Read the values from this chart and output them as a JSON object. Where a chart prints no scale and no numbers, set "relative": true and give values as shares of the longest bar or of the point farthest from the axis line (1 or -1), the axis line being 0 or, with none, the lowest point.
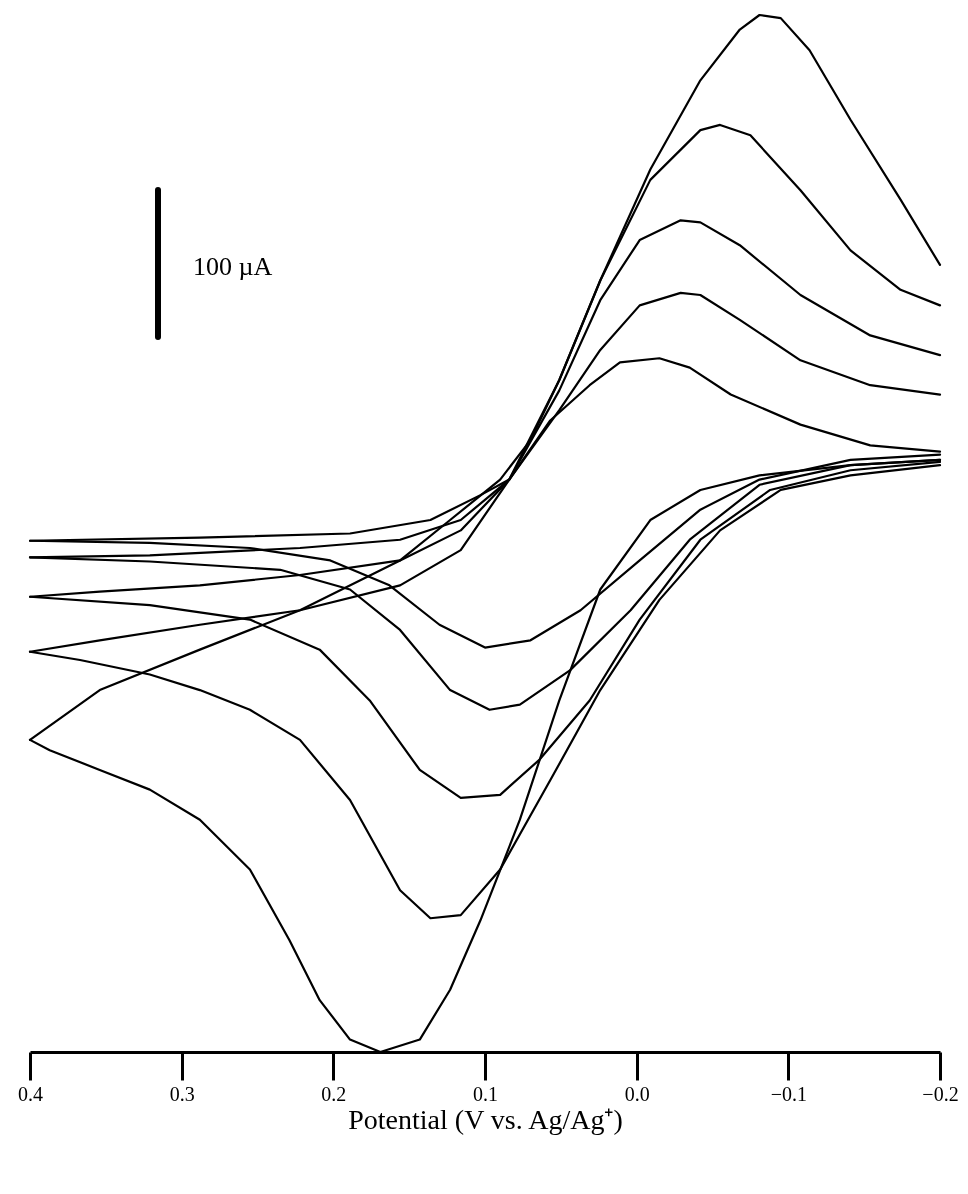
{
  "chart_data": {
    "type": "line",
    "relative": true,
    "xlabel": "Potential (V vs. Ag/Ag⁺)",
    "xlim": [
      0.4,
      -0.2
    ],
    "xticks": [
      0.4,
      0.3,
      0.2,
      0.1,
      {
        "value": 0,
        "label": "0.0"
      },
      -0.1,
      -0.2
    ],
    "grid": false,
    "line_style": "solid",
    "marker": "none",
    "annotations": [
      "100 µA"
    ],
    "series": [
      {
        "color": "#000000",
        "x": [
          0.4,
          0.288,
          0.189,
          0.136,
          0.103,
          0.084,
          0.057,
          0.031,
          0.011,
          -0.015,
          -0.035,
          -0.062,
          -0.108,
          -0.154,
          -0.2
        ],
        "values": [
          0.493,
          0.496,
          0.5,
          0.513,
          0.537,
          0.552,
          0.609,
          0.643,
          0.665,
          0.669,
          0.66,
          0.634,
          0.605,
          0.585,
          0.579
        ]
      },
      {
        "color": "#000000",
        "x": [
          0.4,
          0.321,
          0.255,
          0.202,
          0.163,
          0.13,
          0.1,
          0.07,
          0.037,
          -0.002,
          -0.042,
          -0.081,
          -0.141,
          -0.2
        ],
        "values": [
          0.493,
          0.491,
          0.486,
          0.474,
          0.45,
          0.412,
          0.39,
          0.397,
          0.426,
          0.474,
          0.523,
          0.552,
          0.571,
          0.576
        ]
      },
      {
        "color": "#000000",
        "x": [
          0.4,
          0.321,
          0.222,
          0.156,
          0.116,
          0.084,
          0.051,
          0.024,
          -0.002,
          -0.029,
          -0.042,
          -0.068,
          -0.108,
          -0.154,
          -0.2
        ],
        "values": [
          0.477,
          0.479,
          0.486,
          0.494,
          0.513,
          0.552,
          0.619,
          0.677,
          0.72,
          0.732,
          0.73,
          0.706,
          0.667,
          0.643,
          0.634
        ]
      },
      {
        "color": "#000000",
        "x": [
          0.4,
          0.321,
          0.235,
          0.189,
          0.156,
          0.123,
          0.097,
          0.077,
          0.044,
          0.004,
          -0.035,
          -0.081,
          -0.141,
          -0.2
        ],
        "values": [
          0.477,
          0.473,
          0.465,
          0.446,
          0.407,
          0.349,
          0.33,
          0.335,
          0.368,
          0.426,
          0.494,
          0.547,
          0.566,
          0.571
        ]
      },
      {
        "color": "#000000",
        "x": [
          0.4,
          0.354,
          0.288,
          0.222,
          0.156,
          0.116,
          0.084,
          0.051,
          0.024,
          -0.002,
          -0.029,
          -0.042,
          -0.068,
          -0.108,
          -0.154,
          -0.2
        ],
        "values": [
          0.439,
          0.444,
          0.45,
          0.46,
          0.474,
          0.503,
          0.552,
          0.638,
          0.725,
          0.783,
          0.802,
          0.8,
          0.778,
          0.73,
          0.691,
          0.672
        ]
      },
      {
        "color": "#000000",
        "x": [
          0.4,
          0.321,
          0.255,
          0.209,
          0.176,
          0.143,
          0.116,
          0.09,
          0.064,
          0.031,
          -0.002,
          -0.042,
          -0.088,
          -0.141,
          -0.2
        ],
        "values": [
          0.439,
          0.431,
          0.417,
          0.388,
          0.339,
          0.272,
          0.245,
          0.248,
          0.282,
          0.339,
          0.417,
          0.494,
          0.542,
          0.561,
          0.569
        ]
      },
      {
        "color": "#000000",
        "x": [
          0.4,
          0.354,
          0.288,
          0.222,
          0.156,
          0.116,
          0.084,
          0.051,
          0.024,
          -0.009,
          -0.042,
          -0.055,
          -0.075,
          -0.108,
          -0.141,
          -0.174,
          -0.2
        ],
        "values": [
          0.386,
          0.397,
          0.412,
          0.426,
          0.45,
          0.484,
          0.552,
          0.648,
          0.744,
          0.841,
          0.889,
          0.894,
          0.884,
          0.831,
          0.773,
          0.735,
          0.72
        ]
      },
      {
        "color": "#000000",
        "x": [
          0.4,
          0.367,
          0.321,
          0.288,
          0.255,
          0.222,
          0.189,
          0.156,
          0.136,
          0.116,
          0.09,
          0.057,
          0.024,
          -0.015,
          -0.055,
          -0.095,
          -0.141,
          -0.2
        ],
        "values": [
          0.386,
          0.378,
          0.364,
          0.349,
          0.33,
          0.301,
          0.243,
          0.156,
          0.129,
          0.132,
          0.176,
          0.262,
          0.349,
          0.436,
          0.503,
          0.542,
          0.556,
          0.566
        ]
      },
      {
        "color": "#000000",
        "x": [
          0.4,
          0.354,
          0.288,
          0.222,
          0.156,
          0.123,
          0.09,
          0.07,
          0.051,
          0.024,
          -0.009,
          -0.042,
          -0.068,
          -0.081,
          -0.095,
          -0.114,
          -0.141,
          -0.174,
          -0.2
        ],
        "values": [
          0.301,
          0.349,
          0.388,
          0.426,
          0.474,
          0.513,
          0.552,
          0.59,
          0.648,
          0.744,
          0.851,
          0.937,
          0.986,
          1.0,
          0.997,
          0.966,
          0.899,
          0.822,
          0.759
        ]
      },
      {
        "color": "#000000",
        "x": [
          0.4,
          0.387,
          0.354,
          0.321,
          0.288,
          0.255,
          0.229,
          0.209,
          0.189,
          0.169,
          0.143,
          0.123,
          0.103,
          0.077,
          0.051,
          0.024,
          -0.009,
          -0.042,
          -0.081,
          -0.141,
          -0.2
        ],
        "values": [
          0.301,
          0.291,
          0.272,
          0.253,
          0.224,
          0.176,
          0.108,
          0.05,
          0.012,
          0,
          0.012,
          0.06,
          0.127,
          0.224,
          0.339,
          0.446,
          0.513,
          0.542,
          0.556,
          0.566,
          0.571
        ]
      }
    ]
  }
}
